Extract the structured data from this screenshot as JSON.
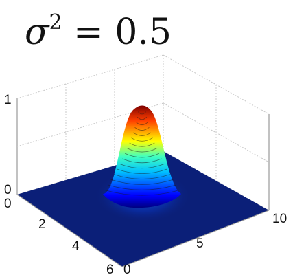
{
  "chart_data": {
    "type": "surface",
    "title": {
      "symbol": "σ",
      "exponent": "2",
      "operator": " = ",
      "value": "0.5"
    },
    "sigma_squared": 0.5,
    "x_ticks": [
      "0",
      "5",
      "10"
    ],
    "y_ticks": [
      "0",
      "2",
      "4",
      "6"
    ],
    "z_ticks": [
      "0",
      "1"
    ],
    "xlim": [
      0,
      10
    ],
    "ylim": [
      0,
      6
    ],
    "zlim": [
      0,
      1
    ],
    "peak": {
      "x": 5,
      "y": 3,
      "z": 1
    },
    "grid": true,
    "colormap": "jet"
  }
}
